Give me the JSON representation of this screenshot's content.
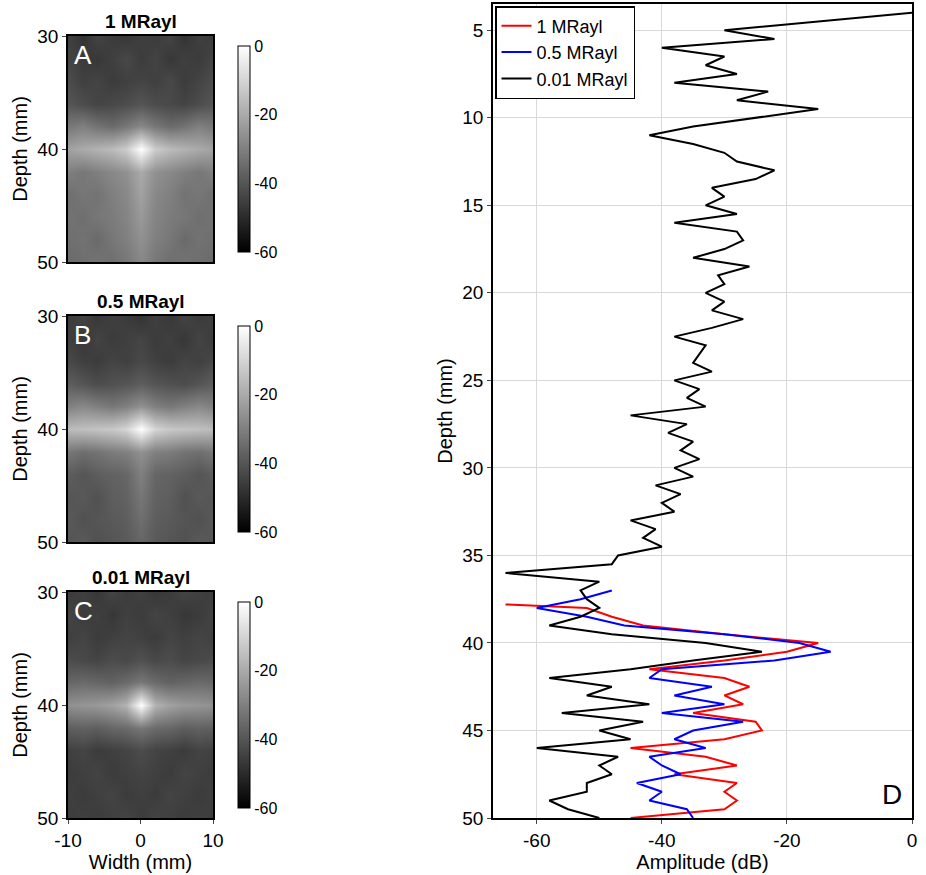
{
  "chart_data": [
    {
      "type": "heatmap",
      "title": "1 MRayl",
      "panel_label": "A",
      "ylabel": "Depth (mm)",
      "x": [
        -10,
        -8,
        -6,
        -4,
        -2,
        0,
        2,
        4,
        6,
        8,
        10
      ],
      "y": [
        30,
        32,
        34,
        36,
        38,
        40,
        42,
        44,
        46,
        48,
        50
      ],
      "z": [
        [
          -45,
          -48,
          -44,
          -46,
          -47,
          -45,
          -46,
          -44,
          -48,
          -45,
          -46
        ],
        [
          -44,
          -46,
          -47,
          -45,
          -43,
          -46,
          -44,
          -47,
          -45,
          -46,
          -44
        ],
        [
          -42,
          -45,
          -44,
          -46,
          -45,
          -44,
          -45,
          -43,
          -46,
          -44,
          -42
        ],
        [
          -40,
          -42,
          -44,
          -43,
          -42,
          -40,
          -42,
          -43,
          -44,
          -42,
          -40
        ],
        [
          -32,
          -30,
          -33,
          -35,
          -32,
          -28,
          -32,
          -35,
          -33,
          -30,
          -32
        ],
        [
          -22,
          -20,
          -18,
          -16,
          -12,
          0,
          -12,
          -16,
          -18,
          -20,
          -22
        ],
        [
          -30,
          -32,
          -30,
          -28,
          -26,
          -20,
          -26,
          -28,
          -30,
          -32,
          -30
        ],
        [
          -34,
          -32,
          -33,
          -30,
          -28,
          -22,
          -28,
          -30,
          -33,
          -32,
          -34
        ],
        [
          -33,
          -34,
          -32,
          -31,
          -29,
          -24,
          -29,
          -31,
          -32,
          -34,
          -33
        ],
        [
          -34,
          -33,
          -35,
          -32,
          -30,
          -26,
          -30,
          -32,
          -35,
          -33,
          -34
        ],
        [
          -35,
          -34,
          -33,
          -34,
          -32,
          -28,
          -32,
          -34,
          -33,
          -34,
          -35
        ]
      ],
      "xlim": [
        -10,
        10
      ],
      "ylim": [
        50,
        30
      ],
      "yticks": [
        30,
        40,
        50
      ],
      "zlim": [
        -60,
        0
      ],
      "zticks": [
        0,
        -20,
        -40,
        -60
      ],
      "tick_labels": "y"
    },
    {
      "type": "heatmap",
      "title": "0.5 MRayl",
      "panel_label": "B",
      "ylabel": "Depth (mm)",
      "x": [
        -10,
        -8,
        -6,
        -4,
        -2,
        0,
        2,
        4,
        6,
        8,
        10
      ],
      "y": [
        30,
        32,
        34,
        36,
        38,
        40,
        42,
        44,
        46,
        48,
        50
      ],
      "z": [
        [
          -46,
          -44,
          -47,
          -45,
          -46,
          -48,
          -45,
          -47,
          -44,
          -46,
          -45
        ],
        [
          -45,
          -47,
          -44,
          -46,
          -45,
          -44,
          -46,
          -45,
          -47,
          -44,
          -46
        ],
        [
          -43,
          -45,
          -46,
          -44,
          -45,
          -43,
          -45,
          -46,
          -44,
          -45,
          -43
        ],
        [
          -38,
          -40,
          -42,
          -41,
          -40,
          -38,
          -40,
          -41,
          -42,
          -40,
          -38
        ],
        [
          -30,
          -28,
          -30,
          -32,
          -30,
          -26,
          -30,
          -32,
          -30,
          -28,
          -30
        ],
        [
          -16,
          -15,
          -14,
          -13,
          -10,
          0,
          -10,
          -13,
          -14,
          -15,
          -16
        ],
        [
          -32,
          -34,
          -33,
          -31,
          -30,
          -26,
          -30,
          -31,
          -33,
          -34,
          -32
        ],
        [
          -38,
          -40,
          -38,
          -37,
          -36,
          -30,
          -36,
          -37,
          -38,
          -40,
          -38
        ],
        [
          -40,
          -39,
          -41,
          -38,
          -37,
          -32,
          -37,
          -38,
          -41,
          -39,
          -40
        ],
        [
          -39,
          -41,
          -40,
          -39,
          -38,
          -34,
          -38,
          -39,
          -40,
          -41,
          -39
        ],
        [
          -40,
          -39,
          -41,
          -40,
          -39,
          -36,
          -39,
          -40,
          -41,
          -39,
          -40
        ]
      ],
      "xlim": [
        -10,
        10
      ],
      "ylim": [
        50,
        30
      ],
      "yticks": [
        30,
        40,
        50
      ],
      "zlim": [
        -60,
        0
      ],
      "zticks": [
        0,
        -20,
        -40,
        -60
      ],
      "tick_labels": "y"
    },
    {
      "type": "heatmap",
      "title": "0.01 MRayl",
      "panel_label": "C",
      "xlabel": "Width (mm)",
      "ylabel": "Depth (mm)",
      "x": [
        -10,
        -8,
        -6,
        -4,
        -2,
        0,
        2,
        4,
        6,
        8,
        10
      ],
      "y": [
        30,
        32,
        34,
        36,
        38,
        40,
        42,
        44,
        46,
        48,
        50
      ],
      "z": [
        [
          -46,
          -45,
          -47,
          -44,
          -46,
          -45,
          -47,
          -46,
          -44,
          -45,
          -46
        ],
        [
          -44,
          -46,
          -45,
          -47,
          -45,
          -46,
          -44,
          -45,
          -47,
          -46,
          -44
        ],
        [
          -45,
          -44,
          -46,
          -45,
          -44,
          -45,
          -46,
          -44,
          -45,
          -44,
          -45
        ],
        [
          -42,
          -43,
          -44,
          -42,
          -43,
          -41,
          -43,
          -42,
          -44,
          -43,
          -42
        ],
        [
          -36,
          -35,
          -36,
          -37,
          -35,
          -32,
          -35,
          -37,
          -36,
          -35,
          -36
        ],
        [
          -26,
          -25,
          -24,
          -22,
          -18,
          0,
          -18,
          -22,
          -24,
          -25,
          -26
        ],
        [
          -38,
          -37,
          -38,
          -36,
          -35,
          -32,
          -35,
          -36,
          -38,
          -37,
          -38
        ],
        [
          -45,
          -44,
          -46,
          -45,
          -44,
          -42,
          -44,
          -45,
          -46,
          -44,
          -45
        ],
        [
          -46,
          -45,
          -44,
          -46,
          -45,
          -44,
          -45,
          -46,
          -44,
          -45,
          -46
        ],
        [
          -45,
          -46,
          -45,
          -44,
          -46,
          -45,
          -46,
          -44,
          -45,
          -46,
          -45
        ],
        [
          -46,
          -45,
          -46,
          -45,
          -44,
          -46,
          -44,
          -45,
          -46,
          -45,
          -46
        ]
      ],
      "xlim": [
        -10,
        10
      ],
      "ylim": [
        50,
        30
      ],
      "xticks": [
        -10,
        0,
        10
      ],
      "yticks": [
        30,
        40,
        50
      ],
      "zlim": [
        -60,
        0
      ],
      "zticks": [
        0,
        -20,
        -40,
        -60
      ]
    },
    {
      "type": "line",
      "panel_label": "D",
      "xlabel": "Amplitude (dB)",
      "ylabel": "Depth (mm)",
      "xlim": [
        -67,
        0
      ],
      "xticks": [
        -60,
        -40,
        -20,
        0
      ],
      "ylim": [
        50,
        3.5
      ],
      "yticks": [
        5,
        10,
        15,
        20,
        25,
        30,
        35,
        40,
        45,
        50
      ],
      "grid": true,
      "legend": "top left",
      "series": [
        {
          "name": "1 MRayl",
          "color": "#ff0000",
          "y": [
            37.8,
            38,
            38.5,
            39,
            39.5,
            40,
            40.5,
            41,
            41.5,
            42,
            42.5,
            43,
            43.5,
            44,
            44.5,
            45,
            45.5,
            46,
            46.5,
            47,
            47.5,
            48,
            48.5,
            49,
            49.5,
            50
          ],
          "x": [
            -65,
            -52,
            -48,
            -43,
            -30,
            -15,
            -20,
            -30,
            -42,
            -30,
            -26,
            -30,
            -27,
            -35,
            -25,
            -24,
            -30,
            -45,
            -33,
            -28,
            -38,
            -28,
            -30,
            -28,
            -30,
            -45
          ]
        },
        {
          "name": "0.5 MRayl",
          "color": "#0000ff",
          "y": [
            37,
            37.5,
            38,
            38.5,
            39,
            39.5,
            40,
            40.5,
            41,
            41.5,
            42,
            42.5,
            43,
            43.5,
            44,
            44.5,
            45,
            45.5,
            46,
            46.5,
            47,
            47.5,
            48,
            48.5,
            49,
            49.5,
            50
          ],
          "x": [
            -48,
            -53,
            -60,
            -52,
            -46,
            -30,
            -18,
            -13,
            -22,
            -40,
            -42,
            -32,
            -38,
            -30,
            -40,
            -27,
            -35,
            -38,
            -33,
            -42,
            -40,
            -37,
            -44,
            -40,
            -42,
            -36,
            -35
          ]
        },
        {
          "name": "0.01 MRayl",
          "color": "#000000",
          "y": [
            4,
            4.5,
            5,
            5.5,
            6,
            6.5,
            7,
            7.5,
            8,
            8.5,
            9,
            9.5,
            10,
            10.5,
            11,
            11.5,
            12,
            12.5,
            13,
            13.5,
            14,
            14.5,
            15,
            15.5,
            16,
            16.5,
            17,
            17.5,
            18,
            18.5,
            19,
            19.5,
            20,
            20.5,
            21,
            21.5,
            22,
            22.5,
            23,
            23.5,
            24,
            24.5,
            25,
            25.5,
            26,
            26.5,
            27,
            27.5,
            28,
            28.5,
            29,
            29.5,
            30,
            30.5,
            31,
            31.5,
            32,
            32.5,
            33,
            33.5,
            34,
            34.5,
            35,
            35.5,
            36,
            36.5,
            37,
            37.5,
            38,
            38.5,
            39,
            39.5,
            40,
            40.5,
            41,
            41.5,
            42,
            42.5,
            43,
            43.5,
            44,
            44.5,
            45,
            45.5,
            46,
            46.5,
            47,
            47.5,
            48,
            48.5,
            49,
            49.5,
            50
          ],
          "x": [
            0,
            -15,
            -30,
            -22,
            -40,
            -30,
            -33,
            -28,
            -38,
            -23,
            -28,
            -15,
            -25,
            -35,
            -42,
            -35,
            -30,
            -28,
            -22,
            -25,
            -32,
            -30,
            -33,
            -28,
            -38,
            -28,
            -27,
            -30,
            -35,
            -26,
            -31,
            -30,
            -33,
            -30,
            -32,
            -27,
            -32,
            -38,
            -33,
            -34,
            -35,
            -32,
            -38,
            -34,
            -36,
            -33,
            -45,
            -36,
            -39,
            -35,
            -37,
            -34,
            -38,
            -35,
            -41,
            -37,
            -40,
            -38,
            -45,
            -41,
            -43,
            -40,
            -47,
            -48,
            -65,
            -50,
            -53,
            -52,
            -50,
            -53,
            -58,
            -48,
            -33,
            -24,
            -35,
            -45,
            -58,
            -48,
            -52,
            -42,
            -56,
            -43,
            -50,
            -45,
            -60,
            -47,
            -50,
            -48,
            -52,
            -52,
            -58,
            -55,
            -50
          ]
        }
      ]
    }
  ]
}
